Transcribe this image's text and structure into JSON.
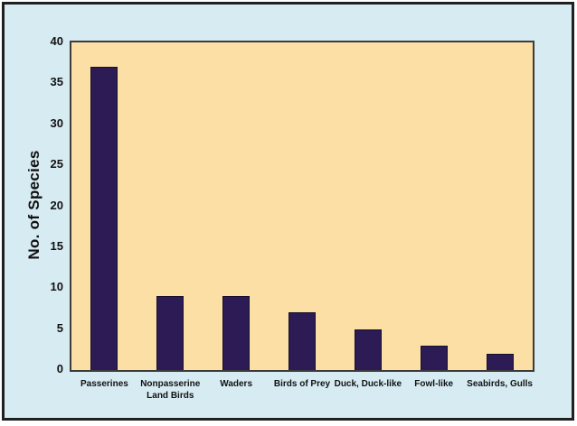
{
  "chart_data": {
    "type": "bar",
    "categories": [
      "Passerines",
      "Nonpasserine\nLand Birds",
      "Waders",
      "Birds of Prey",
      "Duck, Duck-like",
      "Fowl-like",
      "Seabirds, Gulls"
    ],
    "values": [
      37,
      9,
      9,
      7,
      5,
      3,
      2
    ],
    "title": "",
    "xlabel": "",
    "ylabel": "No. of Species",
    "ylim": [
      0,
      40
    ],
    "yticks": [
      0,
      5,
      10,
      15,
      20,
      25,
      30,
      35,
      40
    ],
    "grid": false,
    "legend": false,
    "colors": {
      "bar_fill": "#2c1b55",
      "bar_border": "#17102e",
      "plot_background": "#fcdfa5",
      "plot_border": "#3b3b3b",
      "outer_background": "#d7ebf3",
      "frame_border": "#202020",
      "text": "#111111"
    }
  }
}
